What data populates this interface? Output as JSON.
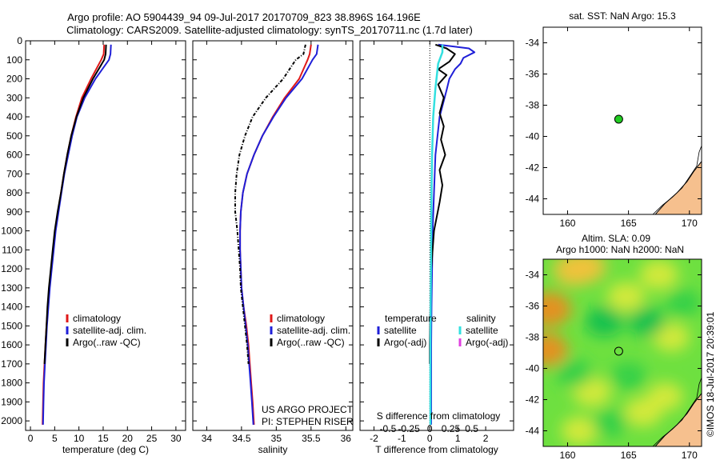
{
  "header": {
    "title_line1": "Argo profile: AO 5904439_94 09-Jul-2017 20170709_823 38.896S 164.196E",
    "title_line2": "Climatology: CARS2009. Satellite-adjusted climatology: synTS_20170711.nc (1.7d later)"
  },
  "credit": "US ARGO PROJECT",
  "pi": "PI: STEPHEN RISER",
  "stamp": "©IMOS 18-Jul-2017 20:39:01",
  "colors": {
    "climatology": "#e01818",
    "satellite": "#1f1fd8",
    "argo": "#000000",
    "salinity_sat": "#33e0e0",
    "salinity_argo": "#e040e0",
    "land": "#f6c08e",
    "marker": "#22cc22"
  },
  "chart_data": [
    {
      "type": "line",
      "name": "temperature-profile",
      "xlabel": "temperature (deg C)",
      "ylabel": "",
      "xlim": [
        -1,
        32
      ],
      "ylim": [
        2050,
        0
      ],
      "xticks": [
        0,
        5,
        10,
        15,
        20,
        25,
        30
      ],
      "yticks": [
        0,
        100,
        200,
        300,
        400,
        500,
        600,
        700,
        800,
        900,
        1000,
        1100,
        1200,
        1300,
        1400,
        1500,
        1600,
        1700,
        1800,
        1900,
        2000
      ],
      "legend": [
        "climatology",
        "satellite-adj. clim.",
        "Argo(..raw -QC)"
      ],
      "series": [
        {
          "name": "climatology",
          "role": "clim",
          "points": [
            [
              15.2,
              20
            ],
            [
              15.1,
              70
            ],
            [
              14.6,
              100
            ],
            [
              12.5,
              200
            ],
            [
              10.6,
              300
            ],
            [
              9.4,
              400
            ],
            [
              8.4,
              500
            ],
            [
              7.6,
              600
            ],
            [
              6.9,
              700
            ],
            [
              6.3,
              800
            ],
            [
              5.7,
              900
            ],
            [
              5.1,
              1000
            ],
            [
              4.7,
              1100
            ],
            [
              4.3,
              1200
            ],
            [
              3.9,
              1300
            ],
            [
              3.6,
              1400
            ],
            [
              3.3,
              1500
            ],
            [
              3.1,
              1600
            ],
            [
              2.9,
              1700
            ],
            [
              2.7,
              1800
            ],
            [
              2.6,
              1900
            ],
            [
              2.5,
              2020
            ]
          ]
        },
        {
          "name": "satellite-adj. clim.",
          "role": "sat",
          "points": [
            [
              16.6,
              20
            ],
            [
              16.5,
              70
            ],
            [
              16.2,
              100
            ],
            [
              13.4,
              200
            ],
            [
              11.2,
              300
            ],
            [
              9.6,
              400
            ],
            [
              8.6,
              500
            ],
            [
              7.8,
              600
            ],
            [
              7.0,
              700
            ],
            [
              6.4,
              800
            ],
            [
              5.8,
              900
            ],
            [
              5.2,
              1000
            ],
            [
              4.8,
              1100
            ],
            [
              4.4,
              1200
            ],
            [
              4.0,
              1300
            ],
            [
              3.7,
              1400
            ],
            [
              3.4,
              1500
            ],
            [
              3.2,
              1600
            ],
            [
              3.0,
              1700
            ],
            [
              2.8,
              1800
            ],
            [
              2.7,
              1900
            ],
            [
              2.6,
              2020
            ]
          ]
        },
        {
          "name": "Argo(..raw -QC)",
          "role": "argo",
          "points": [
            [
              15.6,
              20
            ],
            [
              15.5,
              70
            ],
            [
              15.2,
              100
            ],
            [
              12.9,
              200
            ],
            [
              10.9,
              300
            ],
            [
              9.5,
              400
            ],
            [
              8.4,
              500
            ],
            [
              7.6,
              600
            ],
            [
              6.9,
              700
            ],
            [
              6.3,
              800
            ],
            [
              5.6,
              900
            ],
            [
              5.0,
              1000
            ],
            [
              4.6,
              1100
            ],
            [
              4.2,
              1200
            ],
            [
              3.8,
              1300
            ],
            [
              3.5,
              1400
            ],
            [
              3.3,
              1500
            ],
            [
              3.1,
              1600
            ],
            [
              2.9,
              1700
            ]
          ]
        }
      ]
    },
    {
      "type": "line",
      "name": "salinity-profile",
      "xlabel": "salinity",
      "ylabel": "",
      "xlim": [
        33.8,
        36.1
      ],
      "ylim": [
        2050,
        0
      ],
      "xticks": [
        34,
        34.5,
        35,
        35.5,
        36
      ],
      "legend": [
        "climatology",
        "satellite-adj. clim.",
        "Argo(..raw -QC)"
      ],
      "series": [
        {
          "name": "climatology",
          "role": "clim",
          "points": [
            [
              35.5,
              20
            ],
            [
              35.48,
              70
            ],
            [
              35.45,
              100
            ],
            [
              35.33,
              200
            ],
            [
              35.12,
              300
            ],
            [
              34.95,
              400
            ],
            [
              34.8,
              500
            ],
            [
              34.68,
              600
            ],
            [
              34.58,
              700
            ],
            [
              34.52,
              800
            ],
            [
              34.49,
              900
            ],
            [
              34.48,
              1000
            ],
            [
              34.48,
              1100
            ],
            [
              34.49,
              1200
            ],
            [
              34.5,
              1300
            ],
            [
              34.53,
              1400
            ],
            [
              34.57,
              1500
            ],
            [
              34.6,
              1600
            ],
            [
              34.62,
              1700
            ],
            [
              34.64,
              1800
            ],
            [
              34.66,
              1900
            ],
            [
              34.68,
              2020
            ]
          ]
        },
        {
          "name": "satellite-adj. clim.",
          "role": "sat",
          "points": [
            [
              35.6,
              20
            ],
            [
              35.58,
              70
            ],
            [
              35.52,
              100
            ],
            [
              35.37,
              200
            ],
            [
              35.14,
              300
            ],
            [
              34.96,
              400
            ],
            [
              34.8,
              500
            ],
            [
              34.68,
              600
            ],
            [
              34.58,
              700
            ],
            [
              34.52,
              800
            ],
            [
              34.49,
              900
            ],
            [
              34.48,
              1000
            ],
            [
              34.48,
              1100
            ],
            [
              34.49,
              1200
            ],
            [
              34.5,
              1300
            ],
            [
              34.53,
              1400
            ],
            [
              34.56,
              1500
            ],
            [
              34.59,
              1600
            ],
            [
              34.61,
              1700
            ],
            [
              34.63,
              1800
            ],
            [
              34.65,
              1900
            ],
            [
              34.67,
              2020
            ]
          ]
        },
        {
          "name": "Argo(..raw -QC)",
          "role": "argo",
          "dashed": true,
          "points": [
            [
              35.42,
              20
            ],
            [
              35.39,
              70
            ],
            [
              35.28,
              100
            ],
            [
              35.1,
              200
            ],
            [
              34.85,
              300
            ],
            [
              34.66,
              400
            ],
            [
              34.55,
              500
            ],
            [
              34.47,
              600
            ],
            [
              34.43,
              700
            ],
            [
              34.41,
              800
            ],
            [
              34.41,
              900
            ],
            [
              34.44,
              1000
            ],
            [
              34.46,
              1100
            ],
            [
              34.48,
              1200
            ],
            [
              34.49,
              1300
            ],
            [
              34.52,
              1400
            ],
            [
              34.55,
              1500
            ],
            [
              34.58,
              1600
            ],
            [
              34.6,
              1700
            ]
          ]
        }
      ]
    },
    {
      "type": "line",
      "name": "difference-profile",
      "xlabel": "T difference from climatology",
      "top_xlabel": "S difference from climatology",
      "xlim": [
        -2.5,
        3
      ],
      "ylim": [
        2050,
        0
      ],
      "xticks": [
        -2,
        -1,
        0,
        1,
        2
      ],
      "xticklabels": [
        "-2",
        "-1",
        "0",
        "1",
        "2"
      ],
      "top_xticks": [
        -1.5,
        -0.75,
        0,
        0.75,
        1.5
      ],
      "top_xticklabels": [
        "-0.5",
        "-0.25",
        "0",
        "0.25",
        "0.5"
      ],
      "legend_headers": [
        "temperature",
        "salinity"
      ],
      "legend_t": [
        "satellite",
        "Argo(-adj)"
      ],
      "legend_s": [
        "satellite",
        "Argo(-adj)"
      ],
      "series": [
        {
          "name": "T satellite",
          "role": "sat",
          "points": [
            [
              0.3,
              20
            ],
            [
              1.4,
              40
            ],
            [
              1.6,
              60
            ],
            [
              1.2,
              90
            ],
            [
              1.1,
              120
            ],
            [
              0.9,
              150
            ],
            [
              0.7,
              200
            ],
            [
              0.6,
              260
            ],
            [
              0.35,
              400
            ],
            [
              0.2,
              600
            ],
            [
              0.15,
              800
            ],
            [
              0.1,
              1000
            ],
            [
              0.08,
              1200
            ],
            [
              0.06,
              1400
            ],
            [
              0.05,
              1600
            ],
            [
              0.05,
              1800
            ],
            [
              0.05,
              2020
            ]
          ]
        },
        {
          "name": "T Argo(-adj)",
          "role": "argo",
          "points": [
            [
              0.2,
              20
            ],
            [
              0.6,
              40
            ],
            [
              0.9,
              70
            ],
            [
              0.7,
              110
            ],
            [
              0.3,
              150
            ],
            [
              0.6,
              180
            ],
            [
              0.3,
              230
            ],
            [
              0.5,
              300
            ],
            [
              0.35,
              380
            ],
            [
              0.5,
              450
            ],
            [
              0.4,
              520
            ],
            [
              0.55,
              600
            ],
            [
              0.35,
              680
            ],
            [
              0.45,
              760
            ],
            [
              0.35,
              850
            ],
            [
              0.15,
              1000
            ],
            [
              0.05,
              1200
            ],
            [
              0.02,
              1400
            ],
            [
              0.0,
              1600
            ],
            [
              0.0,
              1700
            ]
          ]
        },
        {
          "name": "S satellite",
          "role": "ssat",
          "points": [
            [
              0.45,
              20
            ],
            [
              0.45,
              60
            ],
            [
              0.3,
              120
            ],
            [
              0.2,
              250
            ],
            [
              0.12,
              400
            ],
            [
              0.08,
              600
            ],
            [
              0.06,
              800
            ],
            [
              0.05,
              1000
            ],
            [
              0.04,
              1200
            ],
            [
              0.03,
              1400
            ],
            [
              0.02,
              1600
            ],
            [
              0.02,
              1800
            ],
            [
              0.02,
              2020
            ]
          ]
        },
        {
          "name": "S Argo(-adj)",
          "role": "sargo",
          "points": []
        }
      ]
    },
    {
      "type": "scatter",
      "name": "sst-map",
      "title": "sat. SST: NaN Argo: 15.3",
      "xlim": [
        158,
        171
      ],
      "ylim": [
        -45,
        -33
      ],
      "xticks": [
        160,
        165,
        170
      ],
      "yticks": [
        -34,
        -36,
        -38,
        -40,
        -42,
        -44
      ],
      "points": [
        [
          164.196,
          -38.896
        ]
      ]
    },
    {
      "type": "heatmap",
      "name": "sla-map",
      "title_line1": "Altim. SLA: 0.09",
      "title_line2": "Argo h1000: NaN h2000: NaN",
      "xlim": [
        158,
        171
      ],
      "ylim": [
        -45,
        -33
      ],
      "xticks": [
        160,
        165,
        170
      ],
      "yticks": [
        -34,
        -36,
        -38,
        -40,
        -42,
        -44
      ],
      "points": [
        [
          164.196,
          -38.896
        ]
      ],
      "blobs": [
        {
          "lon": 158.5,
          "lat": -36.2,
          "level": 0.95
        },
        {
          "lon": 158.3,
          "lat": -38.8,
          "level": 0.85
        },
        {
          "lon": 160.5,
          "lat": -33.7,
          "level": 0.8
        },
        {
          "lon": 161.5,
          "lat": -33.5,
          "level": 0.75
        },
        {
          "lon": 164.8,
          "lat": -35.4,
          "level": 0.55
        },
        {
          "lon": 167.5,
          "lat": -34.0,
          "level": 0.6
        },
        {
          "lon": 168.5,
          "lat": -38.0,
          "level": 0.5
        },
        {
          "lon": 162.0,
          "lat": -41.5,
          "level": 0.6
        },
        {
          "lon": 168.0,
          "lat": -41.8,
          "level": 0.45
        },
        {
          "lon": 166.2,
          "lat": -42.8,
          "level": 0.55
        },
        {
          "lon": 161.0,
          "lat": -44.0,
          "level": 0.5
        },
        {
          "lon": 163.0,
          "lat": -37.0,
          "level": -0.6
        },
        {
          "lon": 166.5,
          "lat": -37.0,
          "level": -0.55
        },
        {
          "lon": 160.5,
          "lat": -40.3,
          "level": -0.5
        },
        {
          "lon": 165.0,
          "lat": -40.5,
          "level": -0.45
        },
        {
          "lon": 169.5,
          "lat": -35.8,
          "level": -0.4
        },
        {
          "lon": 163.5,
          "lat": -43.5,
          "level": -0.4
        }
      ]
    }
  ]
}
